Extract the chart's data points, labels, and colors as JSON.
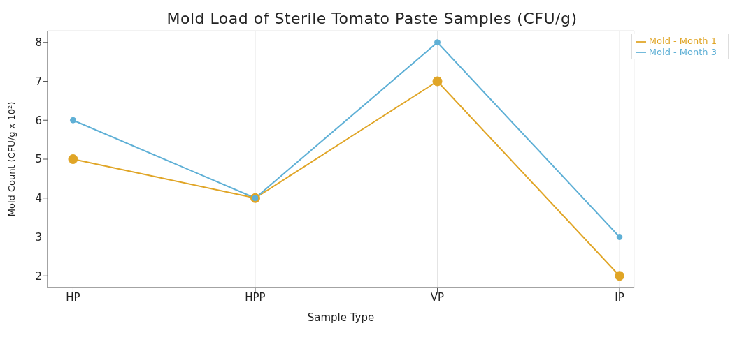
{
  "chart_data": {
    "type": "line",
    "title": "Mold Load of Sterile Tomato Paste Samples (CFU/g)",
    "xlabel": "Sample Type",
    "ylabel": "Mold Count (CFU/g x 10²)",
    "categories": [
      "HP",
      "HPP",
      "VP",
      "IP"
    ],
    "series": [
      {
        "name": "Mold - Month 1",
        "color": "#e0a526",
        "values": [
          5,
          4,
          7,
          2
        ]
      },
      {
        "name": "Mold - Month 3",
        "color": "#5fb0d6",
        "values": [
          6,
          4,
          8,
          3
        ]
      }
    ],
    "ylim": [
      1.7,
      8.3
    ],
    "yticks": [
      2,
      3,
      4,
      5,
      6,
      7,
      8
    ],
    "grid": true,
    "legend": "top right",
    "marker": "circle",
    "line_style": "solid"
  }
}
